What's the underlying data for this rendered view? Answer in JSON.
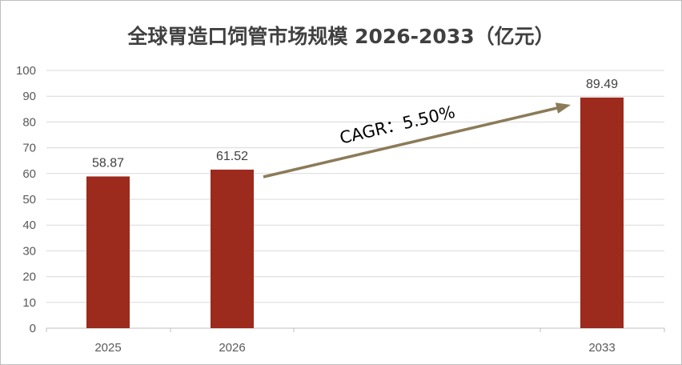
{
  "chart_data": {
    "type": "bar",
    "title": "全球胃造口饲管市场规模 2026-2033（亿元）",
    "categories": [
      "2025",
      "2026",
      "",
      "2033"
    ],
    "values": [
      58.87,
      61.52,
      null,
      89.49
    ],
    "data_labels": [
      "58.87",
      "61.52",
      "",
      "89.49"
    ],
    "ylim": [
      0,
      100
    ],
    "y_ticks": [
      "0",
      "10",
      "20",
      "30",
      "40",
      "50",
      "60",
      "70",
      "80",
      "90",
      "100"
    ],
    "grid": true,
    "annotation": {
      "text": "CAGR：5.50%",
      "from_category": "2026",
      "to_category": "2033"
    },
    "colors": {
      "bar": "#9c2a1d",
      "arrow": "#8c7b58",
      "grid": "#d9d9d9",
      "axis": "#bfbfbf"
    }
  }
}
